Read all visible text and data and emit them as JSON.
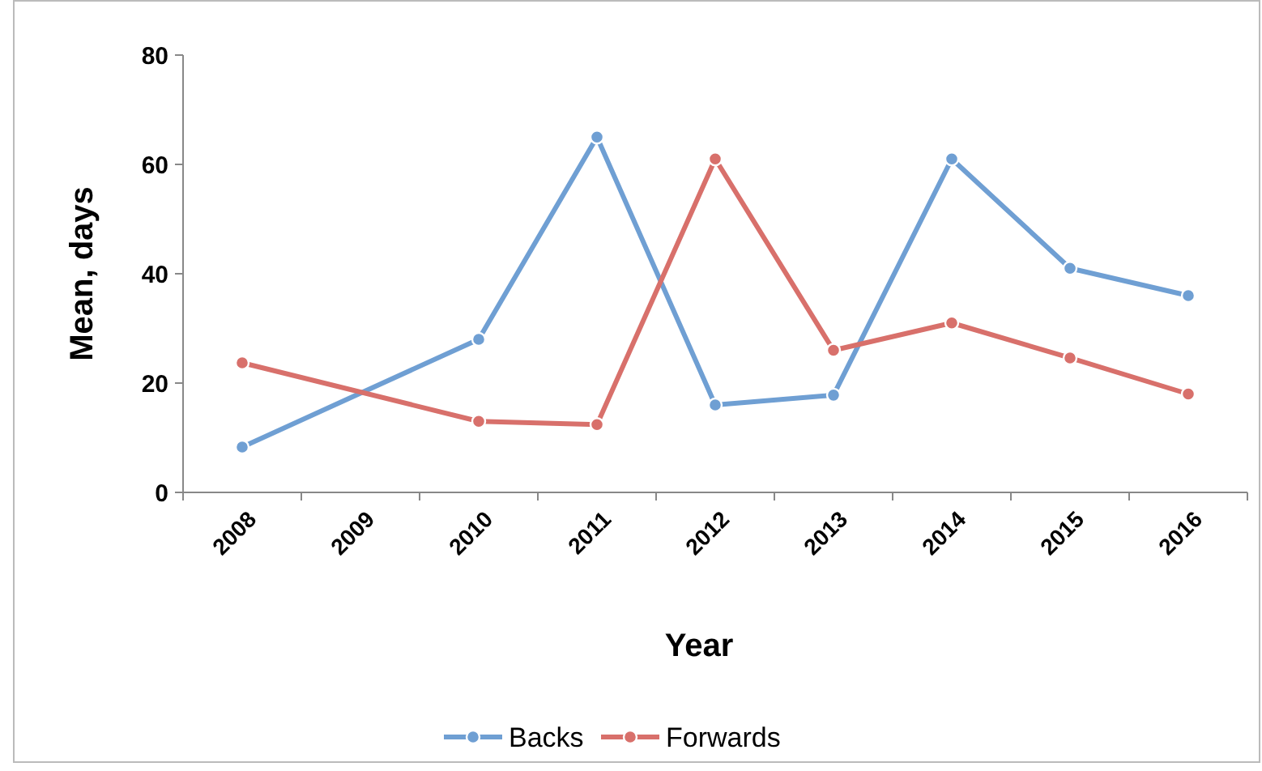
{
  "chart_data": {
    "type": "line",
    "xlabel": "Year",
    "ylabel": "Mean, days",
    "categories": [
      "2008",
      "2009",
      "2010",
      "2011",
      "2012",
      "2013",
      "2014",
      "2015",
      "2016"
    ],
    "series": [
      {
        "name": "Backs",
        "color": "#6f9fd3",
        "values": [
          8.3,
          null,
          28,
          65,
          16,
          17.8,
          61,
          41,
          36
        ]
      },
      {
        "name": "Forwards",
        "color": "#d8706b",
        "values": [
          23.7,
          null,
          13,
          12.4,
          61,
          26,
          31,
          24.6,
          18
        ]
      }
    ],
    "ylim": [
      0,
      80
    ],
    "yticks": [
      0,
      20,
      40,
      60,
      80
    ],
    "grid": false,
    "legend": "bottom",
    "marker": "circle",
    "line_style": "solid"
  }
}
